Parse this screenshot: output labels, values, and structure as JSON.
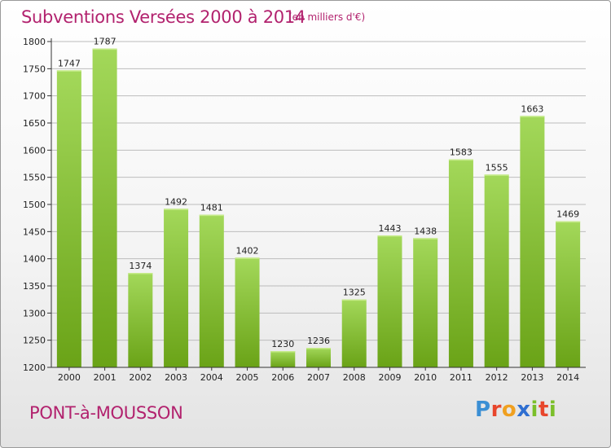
{
  "title": "Subventions Versées 2000 à 2014",
  "subtitle": "(en milliers d'€)",
  "city": "PONT-à-MOUSSON",
  "logo": "Proxiti",
  "colors": {
    "bar_top": "#a3d85a",
    "bar_bottom": "#6aa317",
    "title": "#b2226e",
    "grid": "#bcbcbc"
  },
  "chart_data": {
    "type": "bar",
    "title": "Subventions Versées 2000 à 2014",
    "subtitle": "(en milliers d'€)",
    "xlabel": "",
    "ylabel": "",
    "categories": [
      "2000",
      "2001",
      "2002",
      "2003",
      "2004",
      "2005",
      "2006",
      "2007",
      "2008",
      "2009",
      "2010",
      "2011",
      "2012",
      "2013",
      "2014"
    ],
    "values": [
      1747,
      1787,
      1374,
      1492,
      1481,
      1402,
      1230,
      1236,
      1325,
      1443,
      1438,
      1583,
      1555,
      1663,
      1469
    ],
    "ylim": [
      1200,
      1800
    ],
    "yticks": [
      1200,
      1250,
      1300,
      1350,
      1400,
      1450,
      1500,
      1550,
      1600,
      1650,
      1700,
      1750,
      1800
    ],
    "grid": true,
    "legend": "none"
  }
}
